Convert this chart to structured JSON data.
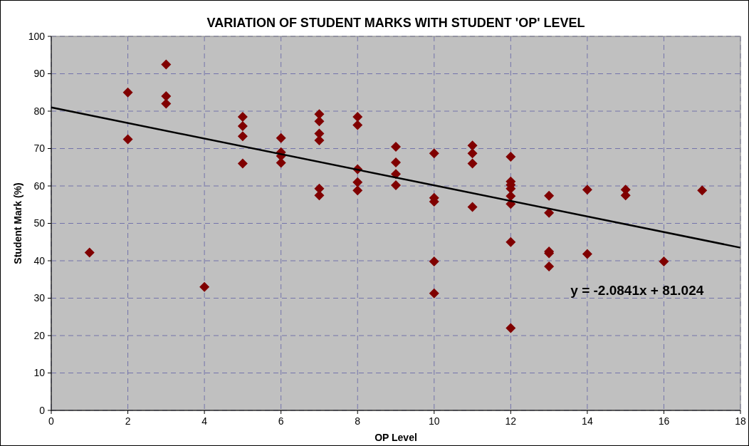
{
  "chart_data": {
    "type": "scatter",
    "title": "VARIATION OF STUDENT MARKS WITH STUDENT 'OP' LEVEL",
    "xlabel": "OP Level",
    "ylabel": "Student Mark (%)",
    "xlim": [
      0,
      18
    ],
    "xticks": [
      0,
      2,
      4,
      6,
      8,
      10,
      12,
      14,
      16,
      18
    ],
    "ylim": [
      0,
      100
    ],
    "yticks": [
      0,
      10,
      20,
      30,
      40,
      50,
      60,
      70,
      80,
      90,
      100
    ],
    "grid": true,
    "marker": "diamond",
    "annotations": [
      "y = -2.0841x + 81.024"
    ],
    "series": [
      {
        "color": "#800000",
        "x": [
          1,
          2,
          2,
          3,
          3,
          3,
          4,
          5,
          5,
          5,
          5,
          6,
          6,
          6,
          6,
          7,
          7,
          7,
          7,
          7,
          7,
          8,
          8,
          8,
          8,
          8,
          9,
          9,
          9,
          9,
          10,
          10,
          10,
          10,
          10,
          11,
          11,
          11,
          11,
          12,
          12,
          12,
          12,
          12,
          12,
          12,
          12,
          13,
          13,
          13,
          13,
          13,
          14,
          14,
          15,
          15,
          16,
          17
        ],
        "values": [
          42.2,
          85,
          72.5,
          92.5,
          84,
          82,
          33,
          78.5,
          76,
          73.3,
          66,
          72.8,
          69,
          68,
          66.2,
          79.2,
          77.3,
          74,
          72.2,
          59.3,
          57.5,
          78.5,
          76.3,
          64.5,
          61,
          58.8,
          70.5,
          66.3,
          63.2,
          60.2,
          68.7,
          56.8,
          55.8,
          39.8,
          31.3,
          70.8,
          68.7,
          66,
          54.4,
          67.8,
          61.2,
          60.3,
          59.3,
          57.3,
          55.2,
          45,
          22,
          57.4,
          52.8,
          42.5,
          42,
          38.5,
          59,
          41.8,
          59,
          57.5,
          39.8,
          58.8
        ]
      },
      {
        "type": "line",
        "color": "#000000",
        "marker": "none",
        "x": [
          0,
          18
        ],
        "values": [
          81,
          43.5
        ]
      }
    ]
  }
}
